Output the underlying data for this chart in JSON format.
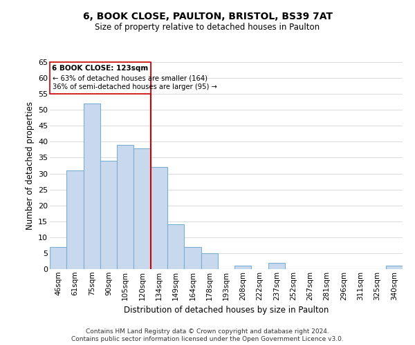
{
  "title": "6, BOOK CLOSE, PAULTON, BRISTOL, BS39 7AT",
  "subtitle": "Size of property relative to detached houses in Paulton",
  "xlabel": "Distribution of detached houses by size in Paulton",
  "ylabel": "Number of detached properties",
  "bar_labels": [
    "46sqm",
    "61sqm",
    "75sqm",
    "90sqm",
    "105sqm",
    "120sqm",
    "134sqm",
    "149sqm",
    "164sqm",
    "178sqm",
    "193sqm",
    "208sqm",
    "222sqm",
    "237sqm",
    "252sqm",
    "267sqm",
    "281sqm",
    "296sqm",
    "311sqm",
    "325sqm",
    "340sqm"
  ],
  "bar_values": [
    7,
    31,
    52,
    34,
    39,
    38,
    32,
    14,
    7,
    5,
    0,
    1,
    0,
    2,
    0,
    0,
    0,
    0,
    0,
    0,
    1
  ],
  "bar_color": "#c8d9ed",
  "bar_edge_color": "#7aafd4",
  "vline_x_index": 5.5,
  "vline_color": "#cc0000",
  "annotation_title": "6 BOOK CLOSE: 123sqm",
  "annotation_line1": "← 63% of detached houses are smaller (164)",
  "annotation_line2": "36% of semi-detached houses are larger (95) →",
  "annotation_box_edge": "#cc0000",
  "ylim": [
    0,
    65
  ],
  "yticks": [
    0,
    5,
    10,
    15,
    20,
    25,
    30,
    35,
    40,
    45,
    50,
    55,
    60,
    65
  ],
  "footer_line1": "Contains HM Land Registry data © Crown copyright and database right 2024.",
  "footer_line2": "Contains public sector information licensed under the Open Government Licence v3.0.",
  "background_color": "#ffffff",
  "grid_color": "#dddddd"
}
